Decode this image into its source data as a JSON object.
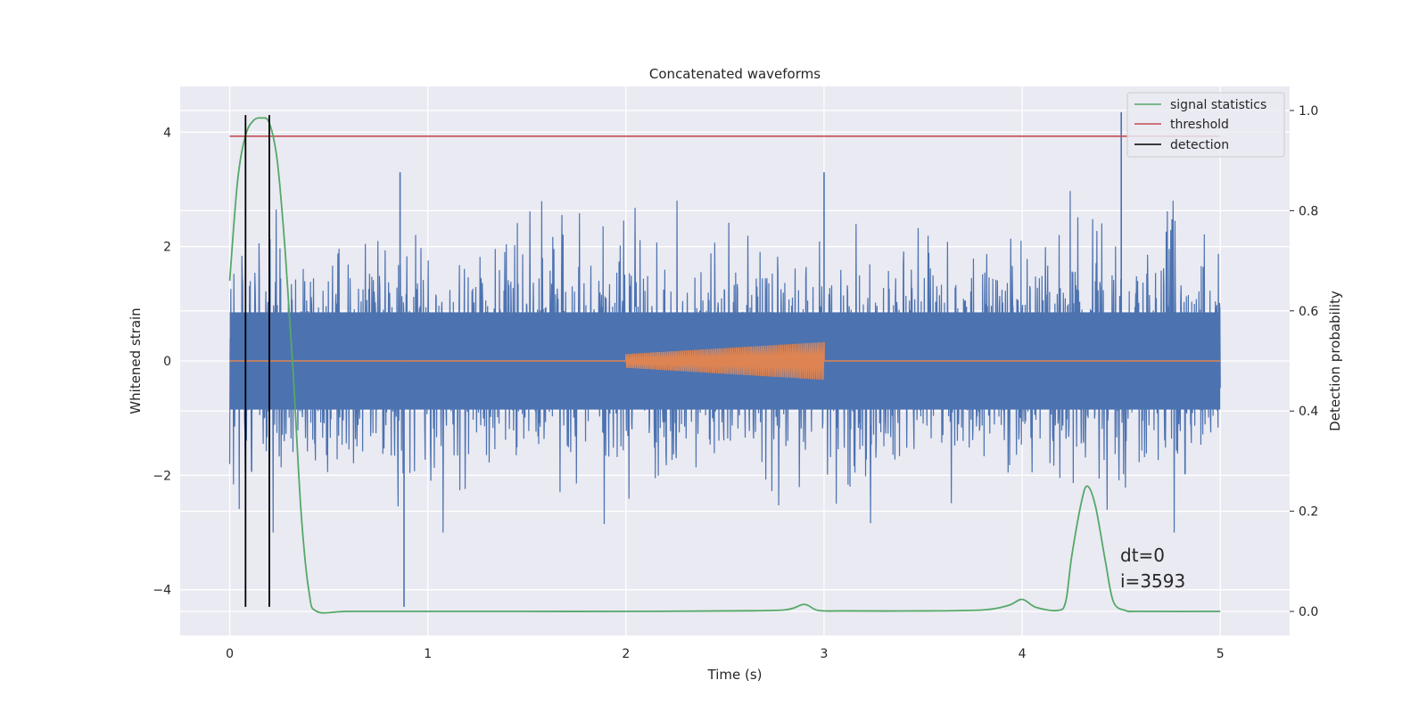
{
  "chart_data": {
    "type": "line",
    "title": "Concatenated waveforms",
    "xlabel": "Time (s)",
    "ylabel": "Whitened strain",
    "y2label": "Detection probability",
    "xlim": [
      -0.25,
      5.35
    ],
    "ylim": [
      -4.8,
      4.8
    ],
    "y2lim": [
      -0.048,
      1.048
    ],
    "xticks": [
      0,
      1,
      2,
      3,
      4,
      5
    ],
    "yticks": [
      -4,
      -2,
      0,
      2,
      4
    ],
    "y2ticks": [
      0.0,
      0.2,
      0.4,
      0.6,
      0.8,
      1.0
    ],
    "xtick_labels": [
      "0",
      "1",
      "2",
      "3",
      "4",
      "5"
    ],
    "ytick_labels": [
      "−4",
      "−2",
      "0",
      "2",
      "4"
    ],
    "y2tick_labels": [
      "0.0",
      "0.2",
      "0.4",
      "0.6",
      "0.8",
      "1.0"
    ],
    "grid": true,
    "legend_position": "top-right",
    "annotation": [
      "dt=0",
      "i=3593"
    ],
    "series": [
      {
        "name": "",
        "axis": "left",
        "kind": "noise",
        "color": "#4c72b0",
        "x_range": [
          0,
          5
        ],
        "dense_band": [
          -0.85,
          0.85
        ],
        "typical_peak": [
          -2.5,
          2.5
        ],
        "spikes": [
          {
            "x": 0.86,
            "y": 3.3
          },
          {
            "x": 0.88,
            "y": -4.3
          },
          {
            "x": 4.5,
            "y": 4.35
          },
          {
            "x": 3.0,
            "y": 3.3
          }
        ]
      },
      {
        "name": "",
        "axis": "left",
        "kind": "chirp",
        "color": "#dd8452",
        "x_range": [
          0,
          5
        ],
        "chirp_start": 2.0,
        "chirp_end": 3.0,
        "amplitude_start": 0.12,
        "amplitude_end": 0.33
      },
      {
        "name": "signal statistics",
        "axis": "right",
        "color": "#55a868",
        "x": [
          0.0,
          0.04,
          0.08,
          0.12,
          0.16,
          0.2,
          0.24,
          0.28,
          0.32,
          0.36,
          0.4,
          0.44,
          0.6,
          1.0,
          1.5,
          2.0,
          2.5,
          2.8,
          2.9,
          2.97,
          3.1,
          3.5,
          3.8,
          3.93,
          4.0,
          4.07,
          4.18,
          4.22,
          4.25,
          4.3,
          4.33,
          4.37,
          4.42,
          4.46,
          4.52,
          4.6,
          5.0
        ],
        "values": [
          0.66,
          0.86,
          0.95,
          0.98,
          0.985,
          0.975,
          0.9,
          0.72,
          0.48,
          0.2,
          0.04,
          0.0,
          0.0,
          0.0,
          0.0,
          0.0,
          0.001,
          0.003,
          0.014,
          0.002,
          0.001,
          0.001,
          0.003,
          0.012,
          0.024,
          0.008,
          0.002,
          0.02,
          0.11,
          0.22,
          0.25,
          0.21,
          0.1,
          0.02,
          0.002,
          0.0,
          0.0
        ]
      },
      {
        "name": "threshold",
        "axis": "left",
        "color": "#c44e52",
        "x": [
          0,
          5
        ],
        "values": [
          3.93,
          3.93
        ]
      },
      {
        "name": "detection",
        "axis": "left",
        "color": "#000000",
        "vlines": [
          0.08,
          0.2
        ],
        "y_range": [
          -4.3,
          4.3
        ]
      }
    ]
  }
}
